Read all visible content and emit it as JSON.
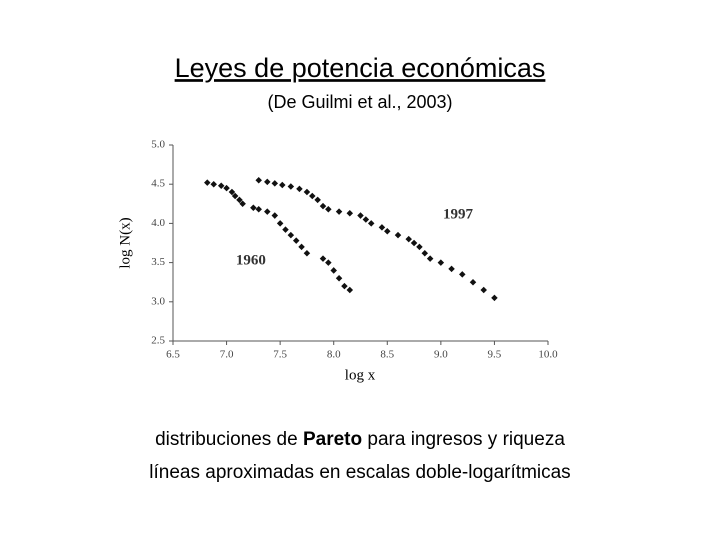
{
  "title": "Leyes de potencia económicas",
  "subtitle": "(De Guilmi et al., 2003)",
  "chart_data": {
    "type": "scatter",
    "x_label": "log x",
    "y_label": "log N(x)",
    "xlim": [
      6.5,
      10.0
    ],
    "xticks": [
      6.5,
      {
        "value": 7,
        "label": "7.0"
      },
      7.5,
      {
        "value": 8,
        "label": "8.0"
      },
      8.5,
      {
        "value": 9,
        "label": "9.0"
      },
      9.5,
      {
        "value": 10,
        "label": "10.0"
      }
    ],
    "ylim": [
      2.5,
      5.0
    ],
    "yticks": [
      2.5,
      {
        "value": 3,
        "label": "3.0"
      },
      3.5,
      {
        "value": 4,
        "label": "4.0"
      },
      4.5,
      {
        "value": 5,
        "label": "5.0"
      }
    ],
    "grid": false,
    "series": [
      {
        "name": "1960",
        "color": "#111111",
        "x": [
          6.82,
          6.88,
          6.95,
          7.0,
          7.05,
          7.08,
          7.12,
          7.15,
          7.25,
          7.3,
          7.38,
          7.45,
          7.5,
          7.55,
          7.6,
          7.65,
          7.7,
          7.75,
          7.9,
          7.95,
          8.0,
          8.05,
          8.1,
          8.15
        ],
        "y": [
          4.52,
          4.5,
          4.48,
          4.45,
          4.4,
          4.35,
          4.3,
          4.25,
          4.2,
          4.18,
          4.15,
          4.1,
          4.0,
          3.92,
          3.85,
          3.78,
          3.7,
          3.62,
          3.55,
          3.5,
          3.4,
          3.3,
          3.2,
          3.15
        ]
      },
      {
        "name": "1997",
        "color": "#111111",
        "x": [
          7.3,
          7.38,
          7.45,
          7.52,
          7.6,
          7.68,
          7.75,
          7.8,
          7.85,
          7.9,
          7.95,
          8.05,
          8.15,
          8.25,
          8.3,
          8.35,
          8.45,
          8.5,
          8.6,
          8.7,
          8.75,
          8.8,
          8.85,
          8.9,
          9.0,
          9.1,
          9.2,
          9.3,
          9.4,
          9.5
        ],
        "y": [
          4.55,
          4.53,
          4.51,
          4.49,
          4.47,
          4.44,
          4.4,
          4.35,
          4.3,
          4.22,
          4.18,
          4.15,
          4.13,
          4.1,
          4.05,
          4.0,
          3.95,
          3.9,
          3.85,
          3.8,
          3.75,
          3.7,
          3.62,
          3.55,
          3.5,
          3.42,
          3.35,
          3.25,
          3.15,
          3.05
        ]
      }
    ]
  },
  "footer_line1": [
    "distribuciones de ",
    "Pareto",
    " para ingresos y riqueza"
  ],
  "footer_line2": "líneas aproximadas en escalas doble-logarítmicas"
}
